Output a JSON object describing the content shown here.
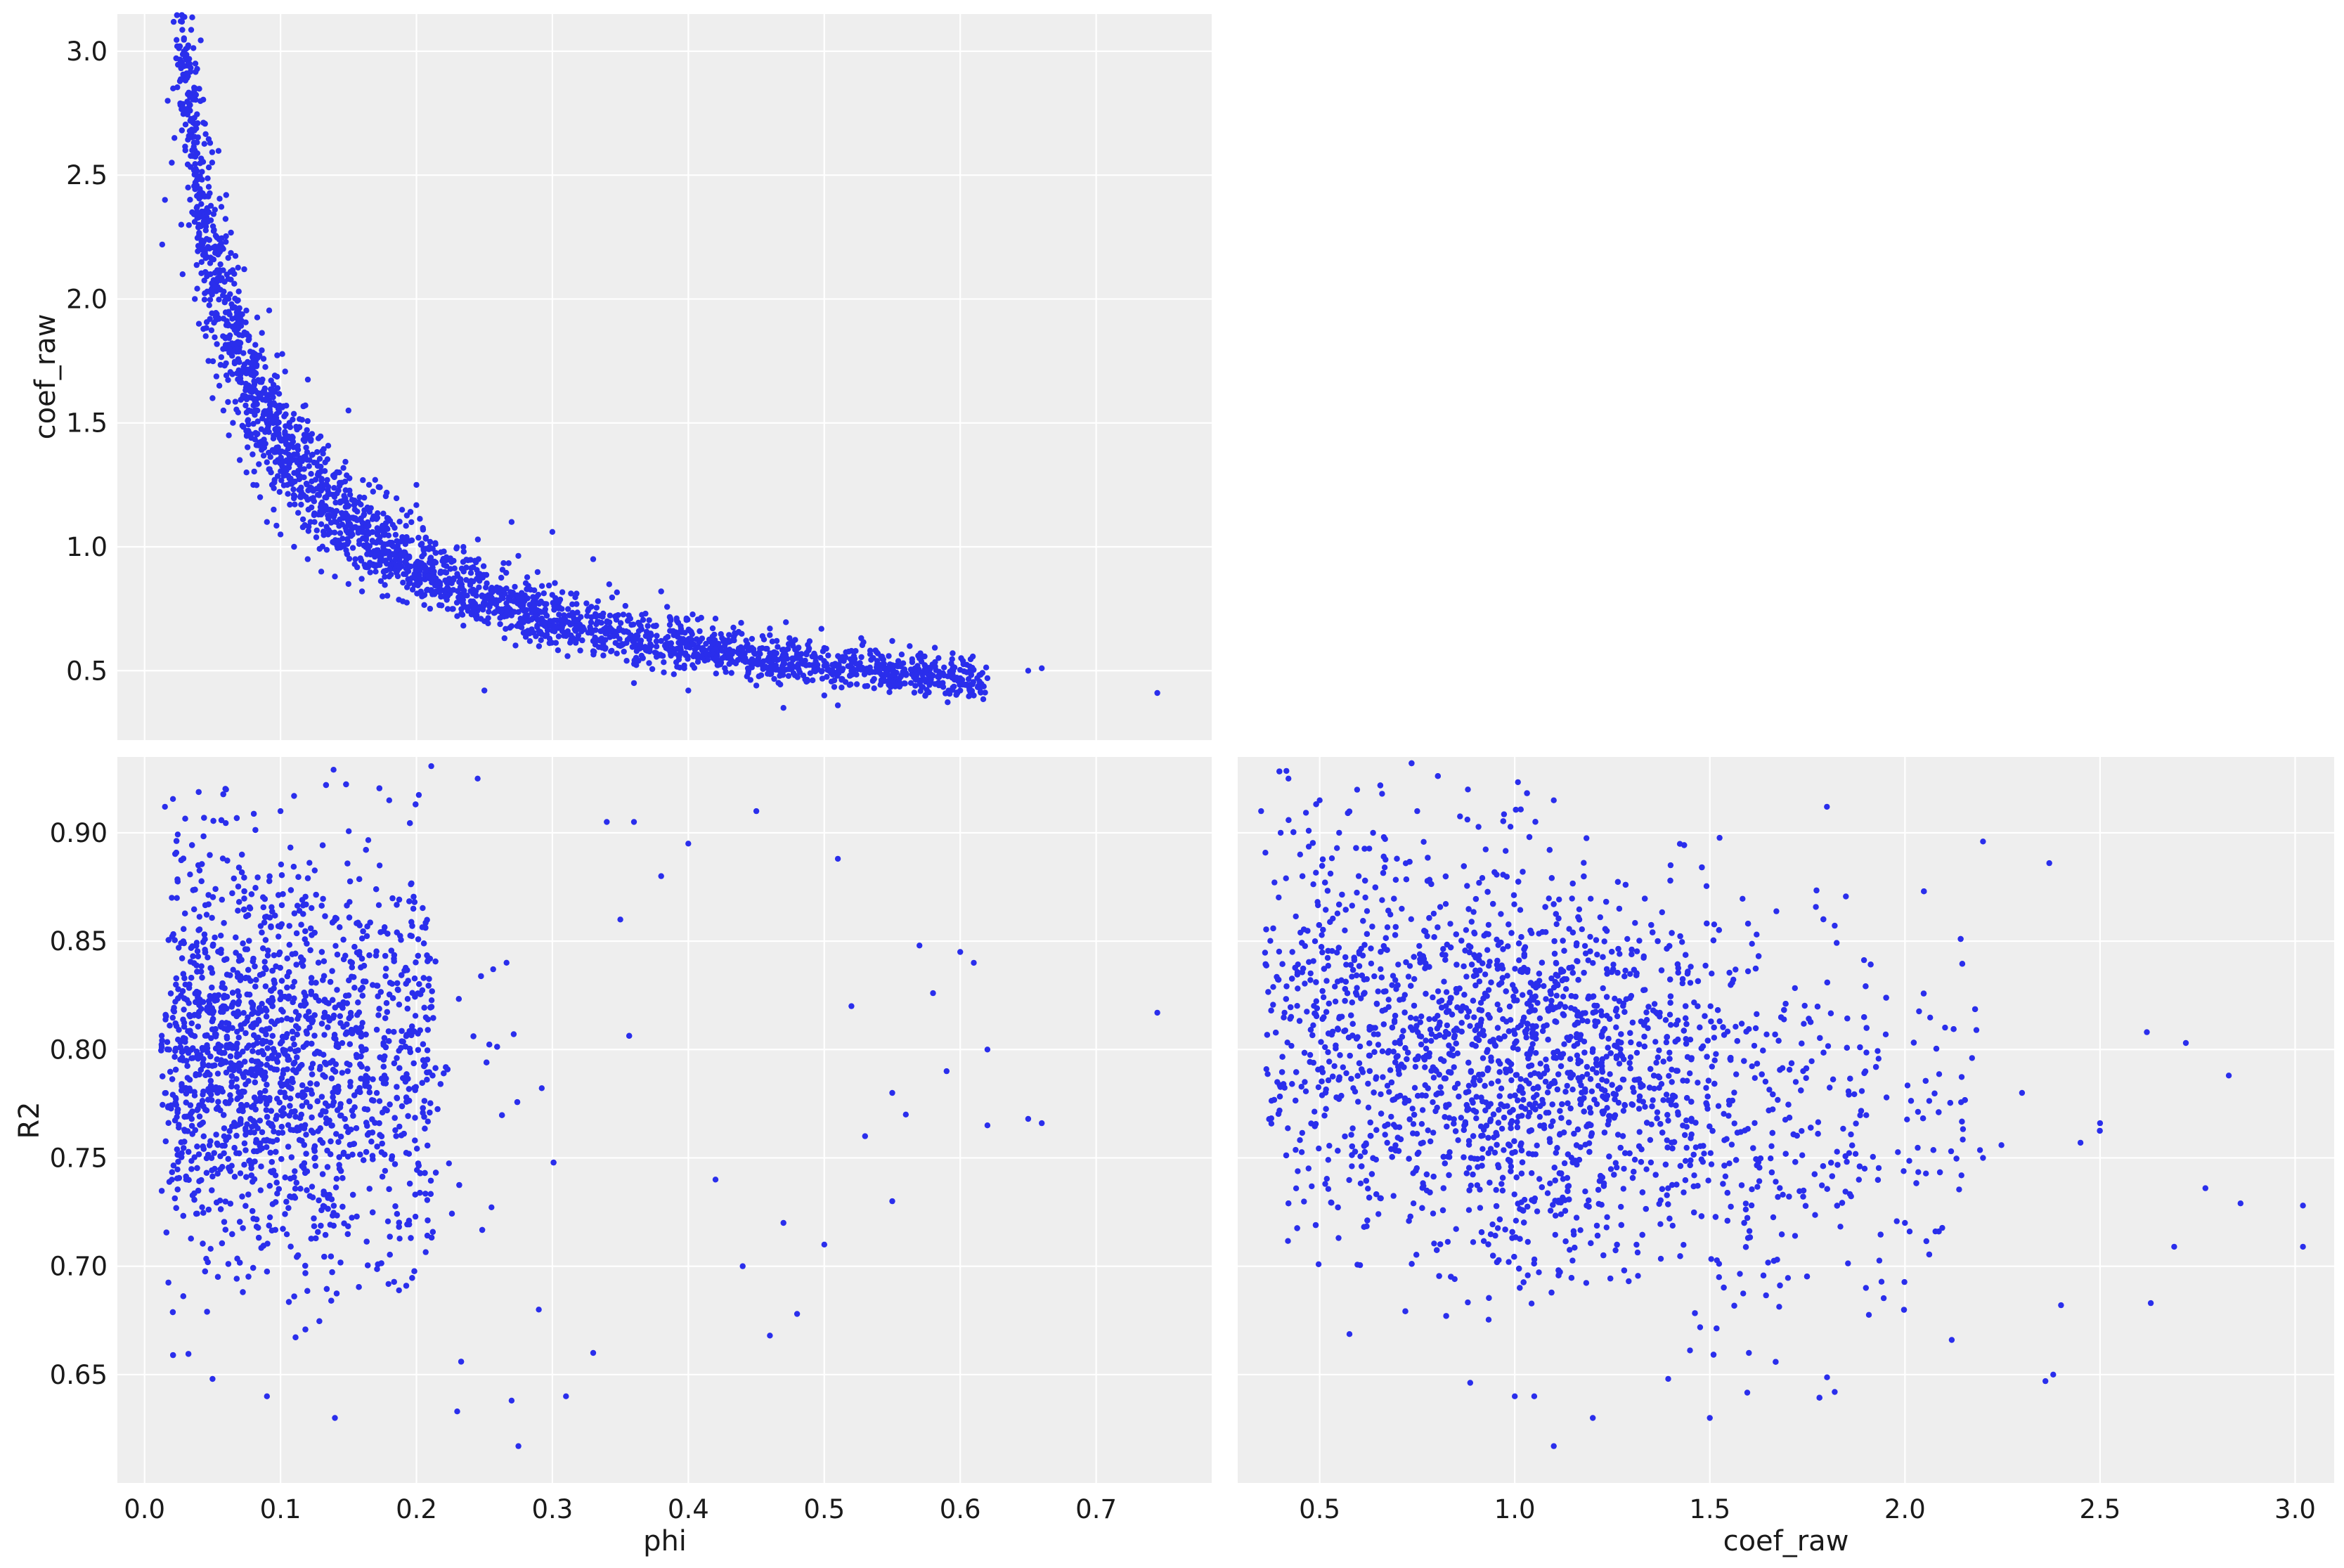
{
  "chart_data": [
    {
      "type": "scatter",
      "panel": "top-left",
      "xlabel": "",
      "ylabel": "coef_raw",
      "xlim": [
        -0.02,
        0.785
      ],
      "ylim": [
        0.22,
        3.15
      ],
      "xticks": [
        0.0,
        0.1,
        0.2,
        0.3,
        0.4,
        0.5,
        0.6,
        0.7
      ],
      "xtick_labels_shown": false,
      "yticks": [
        0.5,
        1.0,
        1.5,
        2.0,
        2.5,
        3.0
      ],
      "ytick_labels": [
        "0.5",
        "1.0",
        "1.5",
        "2.0",
        "2.5",
        "3.0"
      ],
      "grid": true,
      "marker_color": "#2a2eec",
      "x_variable": "phi",
      "y_variable": "coef_raw",
      "points": [
        [
          0.013,
          2.22
        ],
        [
          0.015,
          2.4
        ],
        [
          0.017,
          2.8
        ],
        [
          0.02,
          2.55
        ],
        [
          0.021,
          2.85
        ],
        [
          0.022,
          2.65
        ],
        [
          0.024,
          3.02
        ],
        [
          0.026,
          3.02
        ],
        [
          0.027,
          2.3
        ],
        [
          0.028,
          2.1
        ],
        [
          0.03,
          2.6
        ],
        [
          0.032,
          2.45
        ],
        [
          0.035,
          2.35
        ],
        [
          0.037,
          2.0
        ],
        [
          0.04,
          1.9
        ],
        [
          0.042,
          2.2
        ],
        [
          0.045,
          1.85
        ],
        [
          0.047,
          1.75
        ],
        [
          0.05,
          1.6
        ],
        [
          0.052,
          2.05
        ],
        [
          0.055,
          1.65
        ],
        [
          0.058,
          1.55
        ],
        [
          0.06,
          1.8
        ],
        [
          0.062,
          1.45
        ],
        [
          0.065,
          1.5
        ],
        [
          0.068,
          1.7
        ],
        [
          0.07,
          1.35
        ],
        [
          0.072,
          1.6
        ],
        [
          0.075,
          1.3
        ],
        [
          0.078,
          1.45
        ],
        [
          0.08,
          1.25
        ],
        [
          0.083,
          1.55
        ],
        [
          0.085,
          1.2
        ],
        [
          0.088,
          1.4
        ],
        [
          0.09,
          1.1
        ],
        [
          0.093,
          1.3
        ],
        [
          0.095,
          1.15
        ],
        [
          0.098,
          1.35
        ],
        [
          0.1,
          1.05
        ],
        [
          0.105,
          1.25
        ],
        [
          0.11,
          1.0
        ],
        [
          0.115,
          1.2
        ],
        [
          0.12,
          0.95
        ],
        [
          0.125,
          1.1
        ],
        [
          0.13,
          0.9
        ],
        [
          0.135,
          1.05
        ],
        [
          0.14,
          0.88
        ],
        [
          0.145,
          1.0
        ],
        [
          0.15,
          0.85
        ],
        [
          0.155,
          0.95
        ],
        [
          0.16,
          0.82
        ],
        [
          0.17,
          0.9
        ],
        [
          0.175,
          0.8
        ],
        [
          0.18,
          0.88
        ],
        [
          0.19,
          0.78
        ],
        [
          0.2,
          0.85
        ],
        [
          0.21,
          0.75
        ],
        [
          0.22,
          0.8
        ],
        [
          0.23,
          0.72
        ],
        [
          0.24,
          0.78
        ],
        [
          0.25,
          0.7
        ],
        [
          0.26,
          0.75
        ],
        [
          0.27,
          0.68
        ],
        [
          0.28,
          0.72
        ],
        [
          0.29,
          0.66
        ],
        [
          0.3,
          0.7
        ],
        [
          0.31,
          0.64
        ],
        [
          0.32,
          0.67
        ],
        [
          0.33,
          0.62
        ],
        [
          0.34,
          0.65
        ],
        [
          0.35,
          0.6
        ],
        [
          0.36,
          0.63
        ],
        [
          0.37,
          0.58
        ],
        [
          0.38,
          0.62
        ],
        [
          0.39,
          0.57
        ],
        [
          0.4,
          0.6
        ],
        [
          0.41,
          0.56
        ],
        [
          0.42,
          0.59
        ],
        [
          0.43,
          0.55
        ],
        [
          0.44,
          0.58
        ],
        [
          0.45,
          0.54
        ],
        [
          0.46,
          0.57
        ],
        [
          0.47,
          0.53
        ],
        [
          0.48,
          0.55
        ],
        [
          0.5,
          0.52
        ],
        [
          0.52,
          0.5
        ],
        [
          0.55,
          0.5
        ],
        [
          0.58,
          0.48
        ],
        [
          0.6,
          0.47
        ],
        [
          0.62,
          0.47
        ],
        [
          0.65,
          0.5
        ],
        [
          0.66,
          0.51
        ],
        [
          0.745,
          0.41
        ],
        [
          0.36,
          0.45
        ],
        [
          0.4,
          0.42
        ],
        [
          0.45,
          0.44
        ],
        [
          0.5,
          0.4
        ],
        [
          0.51,
          0.36
        ],
        [
          0.47,
          0.35
        ],
        [
          0.25,
          0.42
        ],
        [
          0.3,
          1.06
        ],
        [
          0.27,
          1.1
        ],
        [
          0.2,
          1.25
        ],
        [
          0.15,
          1.55
        ],
        [
          0.12,
          1.45
        ],
        [
          0.08,
          1.75
        ],
        [
          0.06,
          2.0
        ],
        [
          0.04,
          2.3
        ],
        [
          0.035,
          2.6
        ],
        [
          0.55,
          0.62
        ],
        [
          0.57,
          0.55
        ],
        [
          0.6,
          0.42
        ],
        [
          0.61,
          0.4
        ],
        [
          0.52,
          0.58
        ],
        [
          0.46,
          0.67
        ],
        [
          0.42,
          0.71
        ],
        [
          0.38,
          0.82
        ],
        [
          0.33,
          0.95
        ]
      ],
      "cloud_model": {
        "form": "y ≈ a / x^b",
        "a": 0.34,
        "b": 0.62,
        "x_range": [
          0.012,
          0.62
        ],
        "n_points": 3000,
        "spread": 0.14
      }
    },
    {
      "type": "scatter",
      "panel": "bottom-left",
      "xlabel": "phi",
      "ylabel": "R2",
      "xlim": [
        -0.02,
        0.785
      ],
      "ylim": [
        0.6,
        0.935
      ],
      "xticks": [
        0.0,
        0.1,
        0.2,
        0.3,
        0.4,
        0.5,
        0.6,
        0.7
      ],
      "xtick_labels": [
        "0.0",
        "0.1",
        "0.2",
        "0.3",
        "0.4",
        "0.5",
        "0.6",
        "0.7"
      ],
      "yticks": [
        0.65,
        0.7,
        0.75,
        0.8,
        0.85,
        0.9
      ],
      "ytick_labels": [
        "0.65",
        "0.70",
        "0.75",
        "0.80",
        "0.85",
        "0.90"
      ],
      "grid": true,
      "marker_color": "#2a2eec",
      "x_variable": "phi",
      "y_variable": "R2",
      "points": [
        [
          0.015,
          0.912
        ],
        [
          0.02,
          0.87
        ],
        [
          0.03,
          0.83
        ],
        [
          0.05,
          0.648
        ],
        [
          0.06,
          0.92
        ],
        [
          0.09,
          0.64
        ],
        [
          0.1,
          0.91
        ],
        [
          0.11,
          0.917
        ],
        [
          0.14,
          0.63
        ],
        [
          0.18,
          0.915
        ],
        [
          0.23,
          0.633
        ],
        [
          0.245,
          0.925
        ],
        [
          0.27,
          0.638
        ],
        [
          0.275,
          0.617
        ],
        [
          0.31,
          0.64
        ],
        [
          0.34,
          0.905
        ],
        [
          0.36,
          0.905
        ],
        [
          0.4,
          0.895
        ],
        [
          0.45,
          0.91
        ],
        [
          0.46,
          0.668
        ],
        [
          0.48,
          0.678
        ],
        [
          0.5,
          0.71
        ],
        [
          0.51,
          0.888
        ],
        [
          0.52,
          0.82
        ],
        [
          0.55,
          0.73
        ],
        [
          0.56,
          0.77
        ],
        [
          0.6,
          0.845
        ],
        [
          0.61,
          0.84
        ],
        [
          0.62,
          0.8
        ],
        [
          0.62,
          0.765
        ],
        [
          0.65,
          0.768
        ],
        [
          0.66,
          0.766
        ],
        [
          0.745,
          0.817
        ],
        [
          0.57,
          0.848
        ],
        [
          0.58,
          0.826
        ],
        [
          0.59,
          0.79
        ],
        [
          0.55,
          0.78
        ],
        [
          0.53,
          0.76
        ],
        [
          0.47,
          0.72
        ],
        [
          0.44,
          0.7
        ],
        [
          0.42,
          0.74
        ],
        [
          0.38,
          0.88
        ],
        [
          0.35,
          0.86
        ],
        [
          0.33,
          0.66
        ],
        [
          0.29,
          0.68
        ]
      ],
      "cloud_model": {
        "x_center": 0.1,
        "x_spread": 0.1,
        "y_mean": 0.795,
        "y_sd": 0.045,
        "n_points": 3000
      }
    },
    {
      "type": "scatter",
      "panel": "bottom-right",
      "xlabel": "coef_raw",
      "ylabel": "",
      "xlim": [
        0.29,
        3.1
      ],
      "ylim": [
        0.6,
        0.935
      ],
      "xticks": [
        0.5,
        1.0,
        1.5,
        2.0,
        2.5,
        3.0
      ],
      "xtick_labels": [
        "0.5",
        "1.0",
        "1.5",
        "2.0",
        "2.5",
        "3.0"
      ],
      "yticks": [
        0.65,
        0.7,
        0.75,
        0.8,
        0.85,
        0.9
      ],
      "ytick_labels_shown": false,
      "grid": true,
      "marker_color": "#2a2eec",
      "x_variable": "coef_raw",
      "y_variable": "R2",
      "points": [
        [
          0.35,
          0.91
        ],
        [
          0.4,
          0.9
        ],
        [
          0.42,
          0.925
        ],
        [
          0.41,
          0.817
        ],
        [
          0.43,
          0.845
        ],
        [
          0.45,
          0.89
        ],
        [
          0.5,
          0.915
        ],
        [
          0.55,
          0.9
        ],
        [
          0.6,
          0.88
        ],
        [
          0.66,
          0.918
        ],
        [
          0.75,
          0.91
        ],
        [
          0.88,
          0.92
        ],
        [
          1.1,
          0.915
        ],
        [
          1.8,
          0.912
        ],
        [
          2.2,
          0.896
        ],
        [
          2.37,
          0.886
        ],
        [
          2.62,
          0.808
        ],
        [
          2.72,
          0.803
        ],
        [
          2.83,
          0.788
        ],
        [
          2.86,
          0.729
        ],
        [
          3.02,
          0.728
        ],
        [
          3.02,
          0.709
        ],
        [
          2.77,
          0.736
        ],
        [
          2.69,
          0.709
        ],
        [
          2.63,
          0.683
        ],
        [
          2.4,
          0.682
        ],
        [
          2.36,
          0.647
        ],
        [
          2.38,
          0.65
        ],
        [
          2.12,
          0.666
        ],
        [
          1.82,
          0.642
        ],
        [
          1.5,
          0.63
        ],
        [
          1.1,
          0.617
        ],
        [
          1.05,
          0.64
        ],
        [
          1.2,
          0.63
        ],
        [
          1.0,
          0.64
        ],
        [
          1.6,
          0.66
        ],
        [
          2.5,
          0.766
        ],
        [
          2.45,
          0.757
        ],
        [
          2.3,
          0.78
        ],
        [
          2.2,
          0.75
        ],
        [
          2.0,
          0.72
        ],
        [
          1.9,
          0.69
        ]
      ],
      "cloud_model": {
        "x_mean": 1.0,
        "x_sd": 0.35,
        "y_mean": 0.795,
        "y_sd": 0.045,
        "slope": -0.03,
        "n_points": 3000
      }
    }
  ]
}
